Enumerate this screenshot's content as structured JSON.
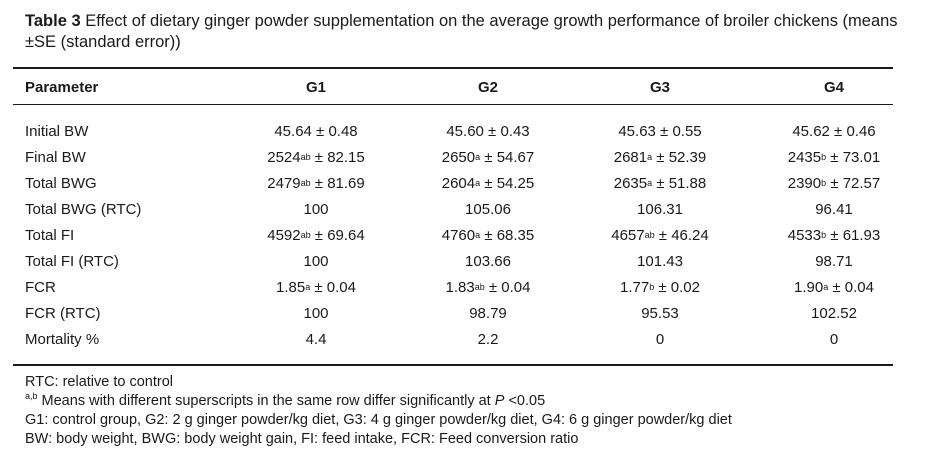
{
  "caption": {
    "label": "Table 3",
    "text": "Effect of dietary ginger powder supplementation on the average growth performance of broiler chickens (means ±SE (standard error))"
  },
  "table": {
    "headers": [
      "Parameter",
      "G1",
      "G2",
      "G3",
      "G4"
    ],
    "rows": [
      {
        "param": "Initial BW",
        "cells": [
          {
            "v": "45.64",
            "s": "",
            "e": " ± 0.48"
          },
          {
            "v": "45.60",
            "s": "",
            "e": " ± 0.43"
          },
          {
            "v": "45.63",
            "s": "",
            "e": " ± 0.55"
          },
          {
            "v": "45.62",
            "s": "",
            "e": " ± 0.46"
          }
        ]
      },
      {
        "param": "Final BW",
        "cells": [
          {
            "v": "2524",
            "s": "ab",
            "e": " ± 82.15"
          },
          {
            "v": "2650",
            "s": "a",
            "e": " ± 54.67"
          },
          {
            "v": "2681",
            "s": "a",
            "e": " ± 52.39"
          },
          {
            "v": "2435",
            "s": "b",
            "e": " ± 73.01"
          }
        ]
      },
      {
        "param": "Total BWG",
        "cells": [
          {
            "v": "2479",
            "s": "ab",
            "e": " ± 81.69"
          },
          {
            "v": "2604",
            "s": "a",
            "e": " ± 54.25"
          },
          {
            "v": "2635",
            "s": "a",
            "e": " ± 51.88"
          },
          {
            "v": "2390",
            "s": "b",
            "e": " ± 72.57"
          }
        ]
      },
      {
        "param": "Total BWG (RTC)",
        "cells": [
          {
            "v": "100",
            "s": "",
            "e": ""
          },
          {
            "v": "105.06",
            "s": "",
            "e": ""
          },
          {
            "v": "106.31",
            "s": "",
            "e": ""
          },
          {
            "v": "96.41",
            "s": "",
            "e": ""
          }
        ]
      },
      {
        "param": "Total FI",
        "cells": [
          {
            "v": "4592",
            "s": "ab",
            "e": " ± 69.64"
          },
          {
            "v": "4760",
            "s": "a",
            "e": " ± 68.35"
          },
          {
            "v": "4657",
            "s": "ab",
            "e": " ± 46.24"
          },
          {
            "v": "4533",
            "s": "b",
            "e": " ± 61.93"
          }
        ]
      },
      {
        "param": "Total FI (RTC)",
        "cells": [
          {
            "v": "100",
            "s": "",
            "e": ""
          },
          {
            "v": "103.66",
            "s": "",
            "e": ""
          },
          {
            "v": "101.43",
            "s": "",
            "e": ""
          },
          {
            "v": "98.71",
            "s": "",
            "e": ""
          }
        ]
      },
      {
        "param": "FCR",
        "cells": [
          {
            "v": "1.85",
            "s": "a",
            "e": " ± 0.04"
          },
          {
            "v": "1.83",
            "s": "ab",
            "e": " ± 0.04"
          },
          {
            "v": "1.77",
            "s": "b",
            "e": " ± 0.02"
          },
          {
            "v": "1.90",
            "s": "a",
            "e": " ± 0.04"
          }
        ]
      },
      {
        "param": "FCR (RTC)",
        "cells": [
          {
            "v": "100",
            "s": "",
            "e": ""
          },
          {
            "v": "98.79",
            "s": "",
            "e": ""
          },
          {
            "v": "95.53",
            "s": "",
            "e": ""
          },
          {
            "v": "102.52",
            "s": "",
            "e": ""
          }
        ]
      },
      {
        "param": "Mortality %",
        "cells": [
          {
            "v": "4.4",
            "s": "",
            "e": ""
          },
          {
            "v": "2.2",
            "s": "",
            "e": ""
          },
          {
            "v": "0",
            "s": "",
            "e": ""
          },
          {
            "v": "0",
            "s": "",
            "e": ""
          }
        ]
      }
    ]
  },
  "footnotes": {
    "rtc": "RTC: relative to control",
    "sig_sup": "a,b",
    "sig_text": " Means with different superscripts in the same row differ significantly at ",
    "sig_p": "P",
    "sig_end": " <0.05",
    "groups": "G1: control group, G2: 2 g ginger powder/kg diet, G3: 4 g ginger powder/kg diet, G4: 6 g ginger powder/kg diet",
    "abbr": "BW: body weight, BWG: body weight gain, FI: feed intake, FCR: Feed conversion ratio"
  }
}
